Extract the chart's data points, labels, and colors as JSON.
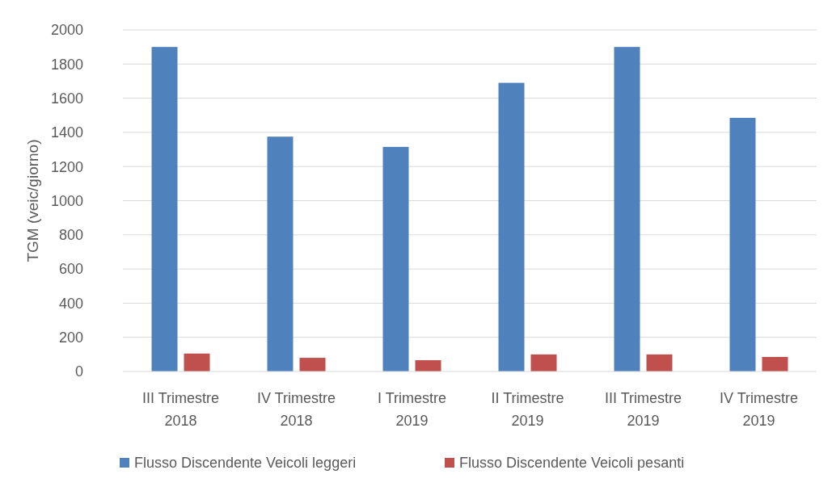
{
  "chart_data": {
    "type": "bar",
    "ylabel": "TGM (veic/giorno)",
    "categories": [
      "III Trimestre 2018",
      "IV Trimestre 2018",
      "I Trimestre 2019",
      "II Trimestre 2019",
      "III Trimestre 2019",
      "IV Trimestre 2019"
    ],
    "series": [
      {
        "name": "Flusso Discendente Veicoli leggeri",
        "color": "#4f81bd",
        "values": [
          1900,
          1375,
          1315,
          1690,
          1900,
          1485
        ]
      },
      {
        "name": "Flusso Discendente Veicoli pesanti",
        "color": "#c0504d",
        "values": [
          105,
          80,
          66,
          100,
          100,
          85
        ]
      }
    ],
    "ylim": [
      0,
      2000
    ],
    "yticks": [
      0,
      200,
      400,
      600,
      800,
      1000,
      1200,
      1400,
      1600,
      1800,
      2000
    ],
    "grid": "y",
    "legend": "bottom"
  }
}
